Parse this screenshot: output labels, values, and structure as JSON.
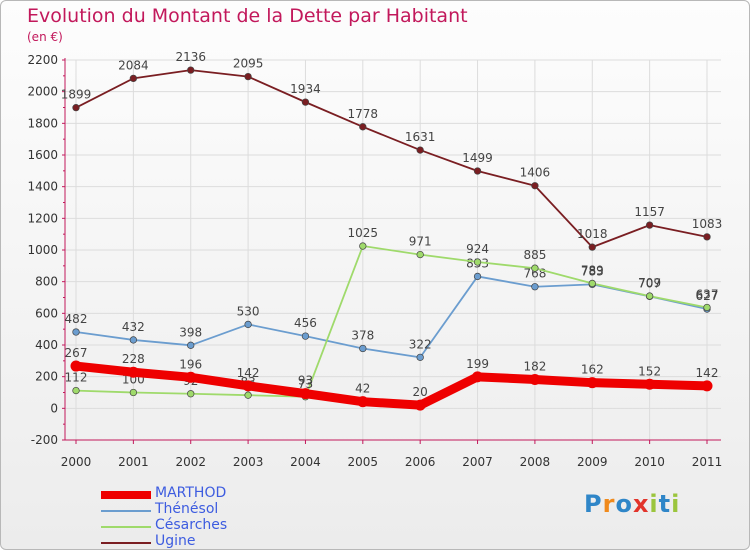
{
  "title": "Evolution du Montant de la Dette par Habitant",
  "subtitle": "(en €)",
  "logo": "Proxiti",
  "chart_data": {
    "type": "line",
    "categories": [
      "2000",
      "2001",
      "2002",
      "2003",
      "2004",
      "2005",
      "2006",
      "2007",
      "2008",
      "2009",
      "2010",
      "2011"
    ],
    "ylim": [
      -200,
      2200
    ],
    "yticks": [
      "-200",
      "0",
      "200",
      "400",
      "600",
      "800",
      "1000",
      "1200",
      "1400",
      "1600",
      "1800",
      "2000",
      "2200"
    ],
    "grid": true,
    "legend_position": "bottom-left",
    "series": [
      {
        "name": "Ugine",
        "color": "#7a1e22",
        "values": [
          1899,
          2084,
          2136,
          2095,
          1934,
          1778,
          1631,
          1499,
          1406,
          1018,
          1157,
          1083
        ],
        "labels": [
          "1899",
          "2084",
          "2136",
          "2095",
          "1934",
          "1778",
          "1631",
          "1499",
          "1406",
          "1018",
          "1157",
          "1083"
        ]
      },
      {
        "name": "Thénésol",
        "color": "#6b9dcf",
        "values": [
          482,
          432,
          398,
          530,
          456,
          378,
          322,
          833,
          768,
          783,
          707,
          627
        ],
        "labels": [
          "482",
          "432",
          "398",
          "530",
          "456",
          "378",
          "322",
          "833",
          "768",
          "783",
          "707",
          "627"
        ]
      },
      {
        "name": "Césarches",
        "color": "#9fda6b",
        "values": [
          112,
          100,
          92,
          83,
          73,
          1025,
          971,
          924,
          885,
          789,
          709,
          637
        ],
        "labels": [
          "112",
          "100",
          "92",
          "83",
          "73",
          "1025",
          "971",
          "924",
          "885",
          "789",
          "709",
          "637"
        ]
      },
      {
        "name": "MARTHOD",
        "color": "#ee0000",
        "values": [
          267,
          228,
          196,
          142,
          93,
          42,
          20,
          199,
          182,
          162,
          152,
          142
        ],
        "labels": [
          "267",
          "228",
          "196",
          "142",
          "93",
          "42",
          "20",
          "199",
          "182",
          "162",
          "152",
          "142"
        ]
      }
    ]
  }
}
